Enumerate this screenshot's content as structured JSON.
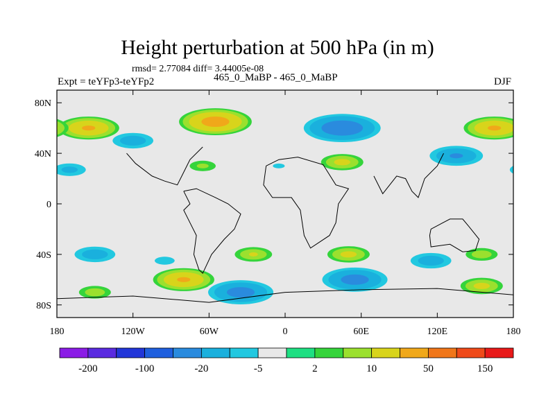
{
  "chart_data": {
    "type": "heatmap",
    "title": "Height perturbation at 500 hPa (in m)",
    "stats_text": "rmsd= 2.77084 diff= 3.44005e-08",
    "left_label": "Expt = teYFp3-teYFp2",
    "center_label": "465_0_MaBP - 465_0_MaBP",
    "right_label": "DJF",
    "x_ticks": [
      "180",
      "120W",
      "60W",
      "0",
      "60E",
      "120E",
      "180"
    ],
    "x_tick_lons": [
      -180,
      -120,
      -60,
      0,
      60,
      120,
      180
    ],
    "y_ticks": [
      "80N",
      "40N",
      "0",
      "40S",
      "80S"
    ],
    "y_tick_lats": [
      80,
      40,
      0,
      -40,
      -80
    ],
    "xlim": [
      -180,
      180
    ],
    "ylim": [
      -90,
      90
    ],
    "colorbar": {
      "levels": [
        "-200",
        "-100",
        "-20",
        "-5",
        "2",
        "10",
        "50",
        "150"
      ],
      "colors": [
        "#8b1ce6",
        "#5a2be0",
        "#2236d8",
        "#1f5fde",
        "#2a8bde",
        "#1ab0dd",
        "#22c8e0",
        "#e8e8e8",
        "#1edf82",
        "#35d43b",
        "#9be02e",
        "#d8d41b",
        "#f0a81a",
        "#f07619",
        "#ef4a19",
        "#e81919"
      ]
    },
    "anomalies": [
      {
        "lon": -55,
        "lat": 65,
        "value": 25
      },
      {
        "lon": 45,
        "lat": 60,
        "value": -30
      },
      {
        "lon": -155,
        "lat": 60,
        "value": 20
      },
      {
        "lon": 165,
        "lat": 60,
        "value": 20
      },
      {
        "lon": -120,
        "lat": 50,
        "value": -15
      },
      {
        "lon": 135,
        "lat": 38,
        "value": -20
      },
      {
        "lon": 45,
        "lat": 33,
        "value": 12
      },
      {
        "lon": -65,
        "lat": 30,
        "value": 6
      },
      {
        "lon": -5,
        "lat": 30,
        "value": -6
      },
      {
        "lon": -170,
        "lat": 27,
        "value": -12
      },
      {
        "lon": -25,
        "lat": -40,
        "value": 10
      },
      {
        "lon": 50,
        "lat": -40,
        "value": 12
      },
      {
        "lon": 155,
        "lat": -40,
        "value": 8
      },
      {
        "lon": -150,
        "lat": -40,
        "value": -15
      },
      {
        "lon": -95,
        "lat": -45,
        "value": -8
      },
      {
        "lon": 115,
        "lat": -45,
        "value": -15
      },
      {
        "lon": 55,
        "lat": -60,
        "value": -25
      },
      {
        "lon": -80,
        "lat": -60,
        "value": 20
      },
      {
        "lon": -150,
        "lat": -70,
        "value": 8
      },
      {
        "lon": -35,
        "lat": -70,
        "value": -25
      },
      {
        "lon": 155,
        "lat": -65,
        "value": 12
      }
    ]
  }
}
